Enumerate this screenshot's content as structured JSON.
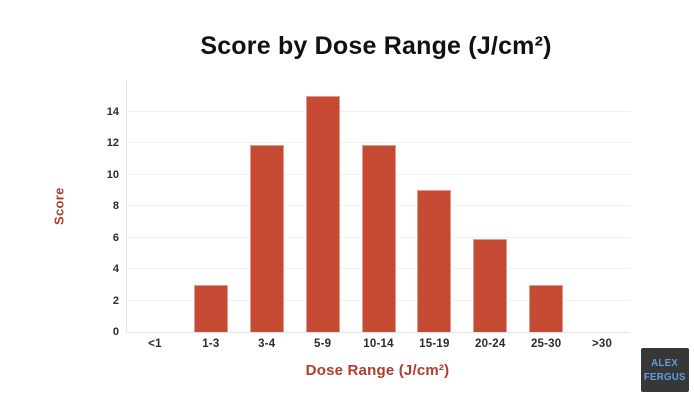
{
  "chart_data": {
    "type": "bar",
    "title": "Score by Dose Range (J/cm²)",
    "xlabel": "Dose Range (J/cm²)",
    "ylabel": "Score",
    "categories": [
      "<1",
      "1-3",
      "3-4",
      "5-9",
      "10-14",
      "15-19",
      "20-24",
      "25-30",
      ">30"
    ],
    "values": [
      0,
      3,
      11.9,
      15,
      11.9,
      9,
      5.9,
      3,
      0
    ],
    "yticks": [
      0,
      2,
      4,
      6,
      8,
      10,
      12,
      14
    ],
    "ylim": [
      0,
      16
    ],
    "grid": true,
    "legend": "none",
    "colors": {
      "bar": "#c64a33",
      "axis_title": "#b23b2e",
      "tick_label": "#2b2b2b",
      "gridline": "#f1f1ef",
      "axis_line": "#e3e3e0",
      "title": "#111111",
      "background": "#ffffff"
    }
  },
  "logo": {
    "line1": "ALEX",
    "line2": "FERGUS",
    "bg": "#373737",
    "text_color": "#5f9fe0"
  }
}
